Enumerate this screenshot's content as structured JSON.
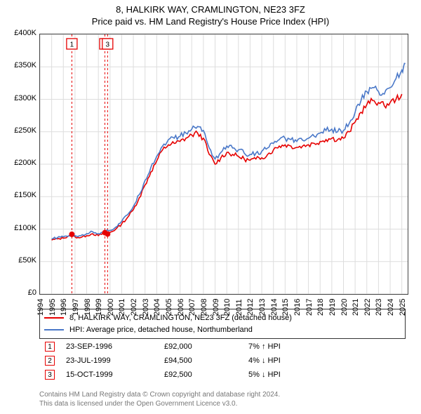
{
  "title_line1": "8, HALKIRK WAY, CRAMLINGTON, NE23 3FZ",
  "title_line2": "Price paid vs. HM Land Registry's House Price Index (HPI)",
  "chart": {
    "type": "line",
    "background_color": "#ffffff",
    "grid_color": "#dddddd",
    "axis_color": "#444444",
    "xlim": [
      1994,
      2025.5
    ],
    "ylim": [
      0,
      400000
    ],
    "ytick_step": 50000,
    "yticks": [
      0,
      50000,
      100000,
      150000,
      200000,
      250000,
      300000,
      350000,
      400000
    ],
    "ytick_labels": [
      "£0",
      "£50K",
      "£100K",
      "£150K",
      "£200K",
      "£250K",
      "£300K",
      "£350K",
      "£400K"
    ],
    "xticks": [
      1994,
      1995,
      1996,
      1997,
      1998,
      1999,
      2000,
      2001,
      2002,
      2003,
      2004,
      2005,
      2006,
      2007,
      2008,
      2009,
      2010,
      2011,
      2012,
      2013,
      2014,
      2015,
      2016,
      2017,
      2018,
      2019,
      2020,
      2021,
      2022,
      2023,
      2024,
      2025
    ],
    "xtick_labels": [
      "1994",
      "1995",
      "1996",
      "1997",
      "1998",
      "1999",
      "2000",
      "2001",
      "2002",
      "2003",
      "2004",
      "2005",
      "2006",
      "2007",
      "2008",
      "2009",
      "2010",
      "2011",
      "2012",
      "2013",
      "2014",
      "2015",
      "2016",
      "2017",
      "2018",
      "2019",
      "2020",
      "2021",
      "2022",
      "2023",
      "2024",
      "2025"
    ],
    "tick_fontsize": 11,
    "title_fontsize": 13,
    "series": [
      {
        "name": "8, HALKIRK WAY, CRAMLINGTON, NE23 3FZ (detached house)",
        "color": "#e60000",
        "line_width": 1.6,
        "x": [
          1995.0,
          1995.5,
          1996.0,
          1996.5,
          1996.73,
          1997.0,
          1997.5,
          1998.0,
          1998.5,
          1999.0,
          1999.56,
          1999.79,
          2000.0,
          2000.5,
          2001.0,
          2001.5,
          2002.0,
          2002.5,
          2003.0,
          2003.5,
          2004.0,
          2004.5,
          2005.0,
          2005.5,
          2006.0,
          2006.5,
          2007.0,
          2007.5,
          2008.0,
          2008.5,
          2009.0,
          2009.5,
          2010.0,
          2010.5,
          2011.0,
          2011.5,
          2012.0,
          2012.5,
          2013.0,
          2013.5,
          2014.0,
          2014.5,
          2015.0,
          2015.5,
          2016.0,
          2016.5,
          2017.0,
          2017.5,
          2018.0,
          2018.5,
          2019.0,
          2019.5,
          2020.0,
          2020.5,
          2021.0,
          2021.5,
          2022.0,
          2022.5,
          2023.0,
          2023.5,
          2024.0,
          2024.5,
          2025.0
        ],
        "y": [
          83000,
          85000,
          86000,
          90000,
          92000,
          88000,
          87000,
          90000,
          93000,
          90000,
          94500,
          92500,
          95000,
          100000,
          108000,
          118000,
          130000,
          148000,
          168000,
          188000,
          205000,
          222000,
          230000,
          232000,
          235000,
          240000,
          245000,
          248000,
          240000,
          215000,
          200000,
          210000,
          218000,
          215000,
          212000,
          208000,
          206000,
          208000,
          210000,
          215000,
          222000,
          228000,
          230000,
          228000,
          226000,
          228000,
          230000,
          232000,
          235000,
          238000,
          240000,
          238000,
          240000,
          250000,
          265000,
          280000,
          292000,
          298000,
          295000,
          290000,
          295000,
          300000,
          308000
        ]
      },
      {
        "name": "HPI: Average price, detached house, Northumberland",
        "color": "#4a78c8",
        "line_width": 1.6,
        "x": [
          1995.0,
          1995.5,
          1996.0,
          1996.5,
          1997.0,
          1997.5,
          1998.0,
          1998.5,
          1999.0,
          1999.5,
          2000.0,
          2000.5,
          2001.0,
          2001.5,
          2002.0,
          2002.5,
          2003.0,
          2003.5,
          2004.0,
          2004.5,
          2005.0,
          2005.5,
          2006.0,
          2006.5,
          2007.0,
          2007.5,
          2008.0,
          2008.5,
          2009.0,
          2009.5,
          2010.0,
          2010.5,
          2011.0,
          2011.5,
          2012.0,
          2012.5,
          2013.0,
          2013.5,
          2014.0,
          2014.5,
          2015.0,
          2015.5,
          2016.0,
          2016.5,
          2017.0,
          2017.5,
          2018.0,
          2018.5,
          2019.0,
          2019.5,
          2020.0,
          2020.5,
          2021.0,
          2021.5,
          2022.0,
          2022.5,
          2023.0,
          2023.5,
          2024.0,
          2024.5,
          2025.0,
          2025.3
        ],
        "y": [
          85000,
          87000,
          88000,
          90000,
          90000,
          90000,
          93000,
          96000,
          93000,
          97000,
          98000,
          103000,
          112000,
          122000,
          135000,
          153000,
          175000,
          195000,
          212000,
          228000,
          238000,
          240000,
          243000,
          248000,
          254000,
          258000,
          252000,
          225000,
          208000,
          218000,
          228000,
          225000,
          222000,
          217000,
          215000,
          217000,
          220000,
          225000,
          232000,
          238000,
          240000,
          238000,
          235000,
          237000,
          240000,
          243000,
          248000,
          252000,
          254000,
          250000,
          252000,
          263000,
          280000,
          298000,
          312000,
          318000,
          312000,
          308000,
          318000,
          332000,
          345000,
          355000
        ]
      }
    ],
    "sale_markers": {
      "marker_color": "#e60000",
      "marker_radius": 4,
      "box_border_color": "#e60000",
      "box_size": 15,
      "box_fontsize": 10,
      "guideline_color": "#e60000",
      "guideline_dash": "3,3",
      "points": [
        {
          "n": "1",
          "x": 1996.73,
          "y": 92000
        },
        {
          "n": "2",
          "x": 1999.56,
          "y": 94500
        },
        {
          "n": "3",
          "x": 1999.79,
          "y": 92500
        }
      ]
    }
  },
  "legend": {
    "border_color": "#333333",
    "fontsize": 11,
    "items": [
      {
        "color": "#e60000",
        "label": "8, HALKIRK WAY, CRAMLINGTON, NE23 3FZ (detached house)"
      },
      {
        "color": "#4a78c8",
        "label": "HPI: Average price, detached house, Northumberland"
      }
    ]
  },
  "sales": {
    "box_border_color": "#e60000",
    "fontsize": 11,
    "rows": [
      {
        "n": "1",
        "date": "23-SEP-1996",
        "price": "£92,000",
        "diff": "7% ↑ HPI"
      },
      {
        "n": "2",
        "date": "23-JUL-1999",
        "price": "£94,500",
        "diff": "4% ↓ HPI"
      },
      {
        "n": "3",
        "date": "15-OCT-1999",
        "price": "£92,500",
        "diff": "5% ↓ HPI"
      }
    ]
  },
  "footnote_line1": "Contains HM Land Registry data © Crown copyright and database right 2024.",
  "footnote_line2": "This data is licensed under the Open Government Licence v3.0.",
  "footnote_color": "#777777"
}
